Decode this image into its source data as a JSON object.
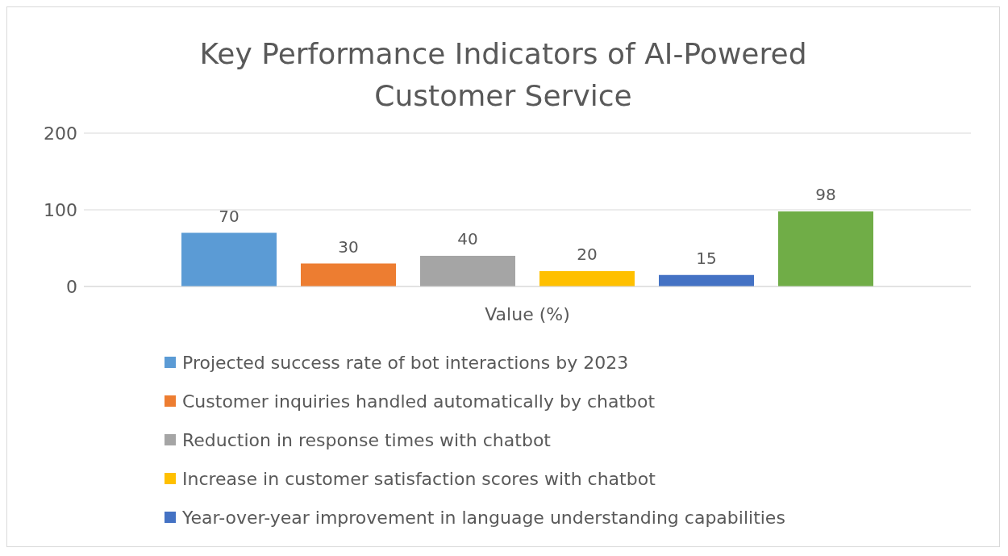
{
  "chart_data": {
    "type": "bar",
    "title": "Key Performance Indicators of AI-Powered Customer Service",
    "categories": [
      "Value (%)"
    ],
    "series": [
      {
        "name": "Projected success rate of bot interactions by 2023",
        "color": "#5b9bd5",
        "values": [
          70
        ]
      },
      {
        "name": "Customer inquiries handled automatically by chatbot",
        "color": "#ed7d31",
        "values": [
          30
        ]
      },
      {
        "name": "Reduction in response times with chatbot",
        "color": "#a5a5a5",
        "values": [
          40
        ]
      },
      {
        "name": "Increase in customer satisfaction scores with chatbot",
        "color": "#ffc000",
        "values": [
          20
        ]
      },
      {
        "name": "Year-over-year improvement in language understanding capabilities",
        "color": "#4472c4",
        "values": [
          15
        ]
      },
      {
        "color": "#70ad47",
        "values": [
          98
        ]
      }
    ],
    "ylim": [
      0,
      200
    ],
    "yticks": [
      0,
      100,
      200
    ],
    "grid": "y",
    "legend": "bottom",
    "data_labels": true
  }
}
